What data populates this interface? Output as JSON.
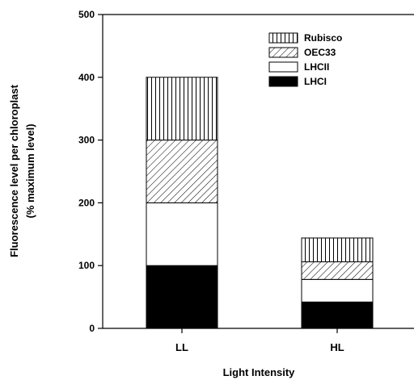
{
  "chart_data": {
    "type": "bar",
    "stacked": true,
    "categories": [
      "LL",
      "HL"
    ],
    "series": [
      {
        "name": "LHCI",
        "values": [
          100,
          42
        ],
        "pattern": "solid",
        "fill": "#000000"
      },
      {
        "name": "LHCII",
        "values": [
          100,
          36
        ],
        "pattern": "none",
        "fill": "#ffffff"
      },
      {
        "name": "OEC33",
        "values": [
          100,
          28
        ],
        "pattern": "diagonal",
        "fill": "#ffffff"
      },
      {
        "name": "Rubisco",
        "values": [
          100,
          38
        ],
        "pattern": "vertical",
        "fill": "#ffffff"
      }
    ],
    "ylim": [
      0,
      500
    ],
    "yticks": [
      "0",
      "100",
      "200",
      "300",
      "400",
      "500"
    ],
    "ylabel_line1": "Fluorescence level per chloroplast",
    "ylabel_line2": "(% maximum level)",
    "xlabel": "Light Intensity",
    "legend_order": [
      "Rubisco",
      "OEC33",
      "LHCII",
      "LHCI"
    ],
    "legend_position": "top-right",
    "grid": false
  }
}
